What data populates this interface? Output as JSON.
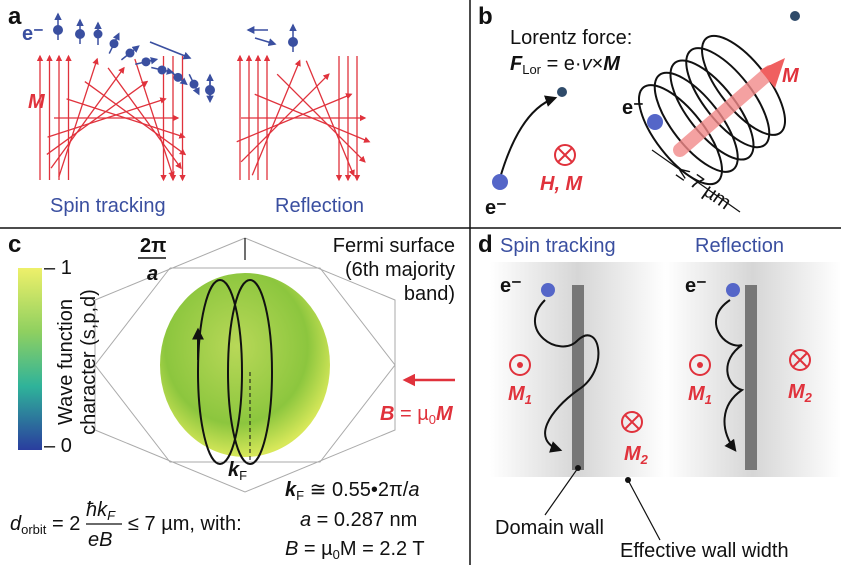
{
  "panel_a": {
    "label": "a",
    "electron": "e⁻",
    "magnetization": "M",
    "spin_tracking": "Spin tracking",
    "reflection": "Reflection"
  },
  "panel_b": {
    "label": "b",
    "title": "Lorentz force:",
    "formula": [
      "F",
      "Lor",
      " = e·",
      "v",
      "×",
      "M"
    ],
    "electron_left": "e⁻",
    "electron_right": "e⁻",
    "field_label": "H, M",
    "magnetization": "M",
    "orbit_size": "≤ 7 µm"
  },
  "panel_c": {
    "label": "c",
    "reciprocal": [
      "2π",
      "a"
    ],
    "surface_title": [
      "Fermi surface",
      "(6th majority",
      "band)"
    ],
    "colorbar": {
      "max": "1",
      "min": "0",
      "title": [
        "Wave function",
        "character (s,p,d)"
      ]
    },
    "field": [
      "B",
      " = µ",
      "0",
      "M"
    ],
    "wavevector": [
      "k",
      "F"
    ],
    "orbit_formula": [
      "d",
      "orbit",
      " = 2",
      "ħk",
      "F",
      "eB",
      "≤ 7 µm, with:"
    ],
    "params": [
      [
        "k",
        "F",
        " ≅ 0.55•2π/",
        "a"
      ],
      [
        "a",
        " = 0.287 nm"
      ],
      [
        "B",
        " = µ",
        "0",
        "M = 2.2 T"
      ]
    ]
  },
  "panel_d": {
    "label": "d",
    "spin_tracking": "Spin tracking",
    "reflection": "Reflection",
    "electron_left": "e⁻",
    "electron_right": "e⁻",
    "m1_left": [
      "M",
      "1"
    ],
    "m2_left": [
      "M",
      "2"
    ],
    "m1_right": [
      "M",
      "1"
    ],
    "m2_right": [
      "M",
      "2"
    ],
    "domain_wall": "Domain wall",
    "effective_width": "Effective wall width"
  }
}
